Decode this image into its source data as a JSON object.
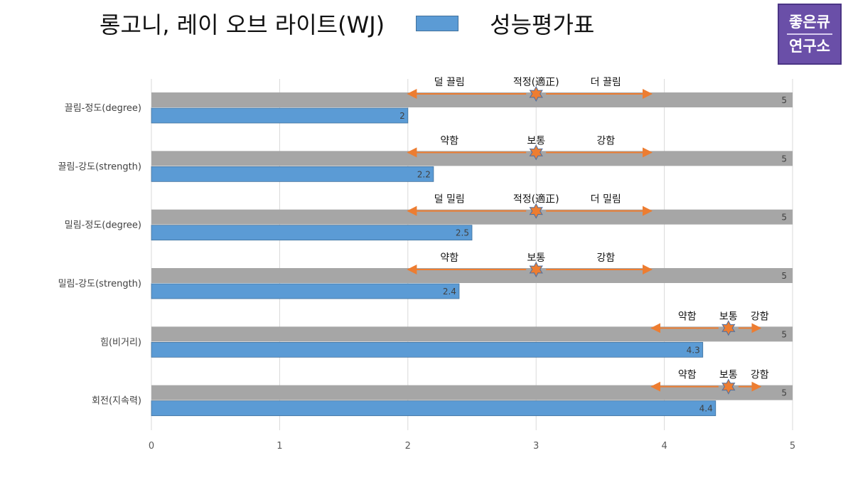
{
  "header": {
    "title": "롱고니, 레이 오브 라이트(WJ)",
    "legend_label": "성능평가표"
  },
  "logo": {
    "line1": "좋은큐",
    "line2": "연구소"
  },
  "colors": {
    "value_bar": "#5b9bd5",
    "max_bar": "#a6a6a6",
    "arrow": "#ed7d31",
    "marker": "#ed7d31"
  },
  "chart_data": {
    "type": "bar",
    "orientation": "horizontal",
    "categories": [
      "끌림-정도(degree)",
      "끌림-강도(strength)",
      "밀림-정도(degree)",
      "밀림-강도(strength)",
      "힘(비거리)",
      "회전(지속력)"
    ],
    "series": [
      {
        "name": "",
        "values": [
          5,
          5,
          5,
          5,
          5,
          5
        ]
      },
      {
        "name": "성능평가표",
        "values": [
          2,
          2.2,
          2.5,
          2.4,
          4.3,
          4.4
        ]
      }
    ],
    "data_labels": {
      "max": [
        "5",
        "5",
        "5",
        "5",
        "5",
        "5"
      ],
      "value": [
        "2",
        "2.2",
        "2.5",
        "2.4",
        "4.3",
        "4.4"
      ]
    },
    "xlim": [
      0,
      5
    ],
    "xticks": [
      0,
      1,
      2,
      3,
      4,
      5
    ],
    "grid": true,
    "annotations": [
      {
        "left": "덜 끌림",
        "center": "적정(適正)",
        "right": "더 끌림",
        "from": 2,
        "to": 3.9,
        "marker": 3
      },
      {
        "left": "약함",
        "center": "보통",
        "right": "강함",
        "from": 2,
        "to": 3.9,
        "marker": 3
      },
      {
        "left": "덜 밀림",
        "center": "적정(適正)",
        "right": "더 밀림",
        "from": 2,
        "to": 3.9,
        "marker": 3
      },
      {
        "left": "약함",
        "center": "보통",
        "right": "강함",
        "from": 2,
        "to": 3.9,
        "marker": 3
      },
      {
        "left": "약함",
        "center": "보통",
        "right": "강함",
        "from": 3.9,
        "to": 4.75,
        "marker": 4.5
      },
      {
        "left": "약함",
        "center": "보통",
        "right": "강함",
        "from": 3.9,
        "to": 4.75,
        "marker": 4.5
      }
    ]
  }
}
